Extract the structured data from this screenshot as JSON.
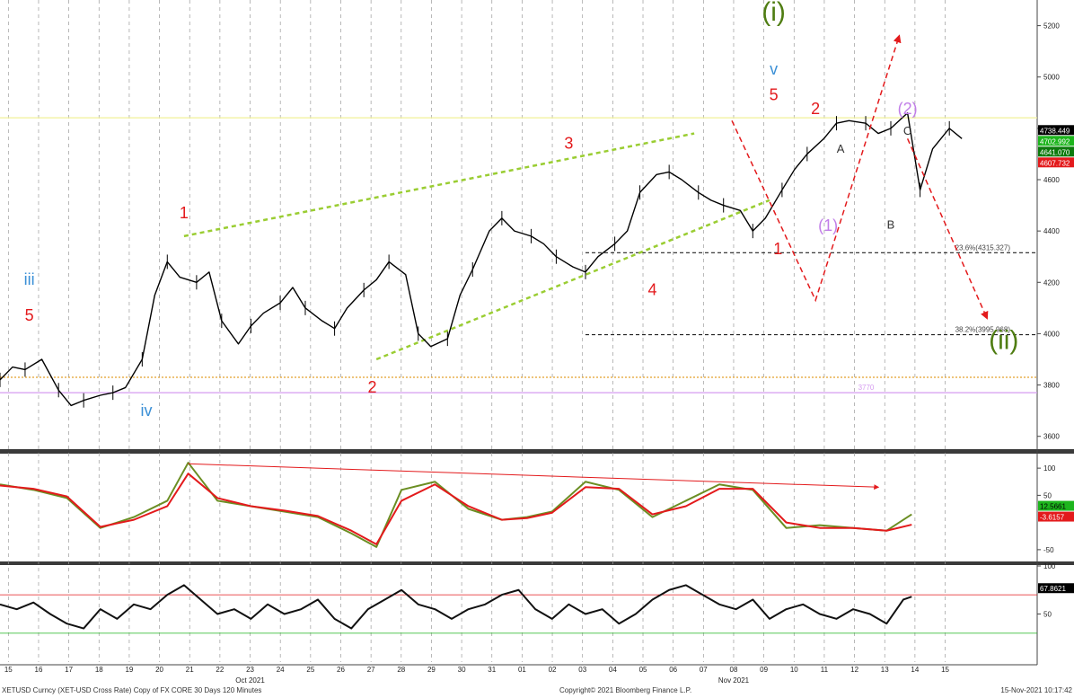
{
  "chart_data": [
    {
      "type": "line",
      "panel": "price",
      "description_printed": "XETUSD Curncy (XET-USD Cross Rate) Copy of FX CORE 30 Days 120 Minutes",
      "ylim": [
        3550,
        5300
      ],
      "y_ticks": [
        3600,
        3800,
        4000,
        4200,
        4400,
        4600,
        4800,
        5000,
        5200
      ],
      "last_price_labels": [
        {
          "value": "4738.449",
          "bg": "#000000",
          "fg": "#ffffff"
        },
        {
          "value": "4702.992",
          "bg": "#1db51d",
          "fg": "#ffffff"
        },
        {
          "value": "4641.070",
          "bg": "#0c7a0c",
          "fg": "#ffffff"
        },
        {
          "value": "4607.732",
          "bg": "#e31a1c",
          "fg": "#ffffff"
        }
      ],
      "series": [
        {
          "role": "price (approximate closes)",
          "color": "#000000",
          "x": [
            0,
            3,
            6,
            10,
            14,
            17,
            20,
            24,
            27,
            30,
            34,
            37,
            40,
            43,
            47,
            50,
            53,
            57,
            60,
            63,
            67,
            70,
            73,
            77,
            80,
            83,
            87,
            90,
            93,
            97,
            100,
            103,
            107,
            110,
            113,
            117,
            120,
            123,
            127,
            130,
            133,
            137,
            140,
            143,
            147,
            150,
            153,
            157,
            160,
            163,
            167,
            170,
            173,
            177,
            180,
            183,
            187,
            190,
            193,
            197,
            200,
            203,
            207,
            210,
            213,
            217,
            220,
            223,
            227,
            230
          ],
          "values": [
            3820,
            3870,
            3860,
            3900,
            3780,
            3720,
            3740,
            3760,
            3770,
            3790,
            3900,
            4150,
            4280,
            4220,
            4200,
            4240,
            4050,
            3960,
            4030,
            4080,
            4120,
            4180,
            4100,
            4050,
            4020,
            4100,
            4170,
            4210,
            4280,
            4230,
            4000,
            3950,
            3980,
            4150,
            4250,
            4400,
            4450,
            4400,
            4380,
            4350,
            4300,
            4260,
            4240,
            4300,
            4350,
            4400,
            4550,
            4620,
            4630,
            4600,
            4550,
            4520,
            4500,
            4480,
            4400,
            4450,
            4560,
            4640,
            4700,
            4760,
            4820,
            4830,
            4820,
            4780,
            4800,
            4860,
            4560,
            4720,
            4800,
            4760
          ]
        }
      ],
      "reference_lines": [
        {
          "y": 4841,
          "color": "#f2f299",
          "style": "solid",
          "label": ""
        },
        {
          "y": 4315.327,
          "color": "#222222",
          "style": "dashed",
          "label": "23.6%(4315.327)"
        },
        {
          "y": 3995.968,
          "color": "#222222",
          "style": "dashed",
          "label": "38.2%(3995.968)"
        },
        {
          "y": 3830,
          "color": "#e3a12a",
          "style": "dotted",
          "label": ""
        },
        {
          "y": 3770,
          "color": "#d59cf0",
          "style": "solid",
          "label": "3770"
        }
      ],
      "annotations": [
        {
          "text": "(i)",
          "color": "#4f7d12",
          "x": 185,
          "y": 5220,
          "size": "xlarge"
        },
        {
          "text": "v",
          "color": "#3a8fd6",
          "x": 185,
          "y": 5010,
          "size": "large"
        },
        {
          "text": "5",
          "color": "#e31a1c",
          "x": 185,
          "y": 4910,
          "size": "large"
        },
        {
          "text": "2",
          "color": "#e31a1c",
          "x": 195,
          "y": 4855,
          "size": "large"
        },
        {
          "text": "(2)",
          "color": "#c17ee8",
          "x": 217,
          "y": 4855,
          "size": "large"
        },
        {
          "text": "C",
          "color": "#333333",
          "x": 217,
          "y": 4775,
          "size": "medium"
        },
        {
          "text": "A",
          "color": "#333333",
          "x": 201,
          "y": 4705,
          "size": "medium"
        },
        {
          "text": "B",
          "color": "#333333",
          "x": 213,
          "y": 4410,
          "size": "medium"
        },
        {
          "text": "(1)",
          "color": "#c17ee8",
          "x": 198,
          "y": 4400,
          "size": "large"
        },
        {
          "text": "1",
          "color": "#e31a1c",
          "x": 186,
          "y": 4310,
          "size": "large"
        },
        {
          "text": "3",
          "color": "#e31a1c",
          "x": 136,
          "y": 4720,
          "size": "large"
        },
        {
          "text": "4",
          "color": "#e31a1c",
          "x": 156,
          "y": 4150,
          "size": "large"
        },
        {
          "text": "1",
          "color": "#e31a1c",
          "x": 44,
          "y": 4450,
          "size": "large"
        },
        {
          "text": "2",
          "color": "#e31a1c",
          "x": 89,
          "y": 3770,
          "size": "large"
        },
        {
          "text": "iii",
          "color": "#3a8fd6",
          "x": 7,
          "y": 4190,
          "size": "large"
        },
        {
          "text": "5",
          "color": "#e31a1c",
          "x": 7,
          "y": 4050,
          "size": "large"
        },
        {
          "text": "iv",
          "color": "#3a8fd6",
          "x": 35,
          "y": 3680,
          "size": "large"
        },
        {
          "text": "(ii)",
          "color": "#4f7d12",
          "x": 240,
          "y": 3940,
          "size": "xlarge"
        }
      ],
      "trend_lines": [
        {
          "color": "#9acd32",
          "style": "dashed",
          "points": [
            [
              44,
              4380
            ],
            [
              166,
              4780
            ]
          ]
        },
        {
          "color": "#9acd32",
          "style": "dashed",
          "points": [
            [
              90,
              3900
            ],
            [
              184,
              4520
            ]
          ]
        }
      ],
      "projection_lines": [
        {
          "color": "#e31a1c",
          "style": "dashed",
          "points": [
            [
              175,
              4830
            ],
            [
              195,
              4130
            ],
            [
              215,
              5160
            ]
          ]
        },
        {
          "color": "#e31a1c",
          "style": "dashed",
          "points": [
            [
              217,
              4760
            ],
            [
              236,
              4060
            ]
          ]
        }
      ]
    },
    {
      "type": "line",
      "panel": "oscillator",
      "ylim": [
        -70,
        125
      ],
      "y_ticks": [
        100,
        50,
        -50
      ],
      "last_value_labels": [
        {
          "value": "12.5661",
          "bg": "#1db51d",
          "fg": "#000000"
        },
        {
          "value": "-3.6157",
          "bg": "#e31a1c",
          "fg": "#ffffff"
        }
      ],
      "series": [
        {
          "role": "fast",
          "color": "#6b8e23",
          "x": [
            0,
            8,
            16,
            24,
            32,
            40,
            45,
            52,
            60,
            68,
            76,
            84,
            90,
            96,
            104,
            112,
            120,
            126,
            132,
            140,
            148,
            156,
            164,
            172,
            180,
            188,
            196,
            204,
            212,
            218
          ],
          "values": [
            70,
            60,
            45,
            -10,
            10,
            40,
            110,
            40,
            30,
            20,
            10,
            -20,
            -45,
            60,
            75,
            25,
            5,
            10,
            20,
            75,
            60,
            10,
            40,
            70,
            60,
            -10,
            -5,
            -10,
            -15,
            15
          ]
        },
        {
          "role": "slow",
          "color": "#e31a1c",
          "x": [
            0,
            8,
            16,
            24,
            32,
            40,
            45,
            52,
            60,
            68,
            76,
            84,
            90,
            96,
            104,
            112,
            120,
            126,
            132,
            140,
            148,
            156,
            164,
            172,
            180,
            188,
            196,
            204,
            212,
            218
          ],
          "values": [
            68,
            62,
            48,
            -8,
            5,
            30,
            90,
            45,
            30,
            22,
            12,
            -15,
            -40,
            40,
            70,
            30,
            5,
            8,
            18,
            65,
            62,
            15,
            30,
            62,
            62,
            0,
            -10,
            -10,
            -15,
            -4
          ]
        }
      ],
      "divergence_line": {
        "color": "#e31a1c",
        "points": [
          [
            45,
            108
          ],
          [
            210,
            65
          ]
        ]
      }
    },
    {
      "type": "line",
      "panel": "rsi",
      "ylim": [
        0,
        100
      ],
      "y_ticks": [
        100,
        50
      ],
      "last_value_labels": [
        {
          "value": "67.8621",
          "bg": "#000000",
          "fg": "#ffffff"
        }
      ],
      "overbought": 70,
      "oversold": 30,
      "series": [
        {
          "role": "rsi",
          "color": "#111111",
          "x": [
            0,
            4,
            8,
            12,
            16,
            20,
            24,
            28,
            32,
            36,
            40,
            44,
            48,
            52,
            56,
            60,
            64,
            68,
            72,
            76,
            80,
            84,
            88,
            92,
            96,
            100,
            104,
            108,
            112,
            116,
            120,
            124,
            128,
            132,
            136,
            140,
            144,
            148,
            152,
            156,
            160,
            164,
            168,
            172,
            176,
            180,
            184,
            188,
            192,
            196,
            200,
            204,
            208,
            212,
            216,
            218
          ],
          "values": [
            60,
            55,
            62,
            50,
            40,
            35,
            55,
            45,
            60,
            55,
            70,
            80,
            65,
            50,
            55,
            45,
            60,
            50,
            55,
            65,
            45,
            35,
            55,
            65,
            75,
            60,
            55,
            45,
            55,
            60,
            70,
            75,
            55,
            45,
            60,
            50,
            55,
            40,
            50,
            65,
            75,
            80,
            70,
            60,
            55,
            65,
            45,
            55,
            60,
            50,
            45,
            55,
            50,
            40,
            65,
            68
          ]
        }
      ]
    }
  ],
  "x_axis": {
    "day_ticks": [
      "15",
      "16",
      "17",
      "18",
      "19",
      "20",
      "21",
      "22",
      "23",
      "24",
      "25",
      "26",
      "27",
      "28",
      "29",
      "30",
      "31",
      "01",
      "02",
      "03",
      "04",
      "05",
      "06",
      "07",
      "08",
      "09",
      "10",
      "11",
      "12",
      "13",
      "14",
      "15"
    ],
    "month_labels": [
      "Oct 2021",
      "Nov 2021"
    ]
  },
  "footer": {
    "left": "XETUSD Curncy (XET-USD Cross Rate) Copy of FX CORE 30 Days 120 Minutes",
    "center": "Copyright© 2021 Bloomberg Finance L.P.",
    "right": "15-Nov-2021 10:17:42"
  }
}
